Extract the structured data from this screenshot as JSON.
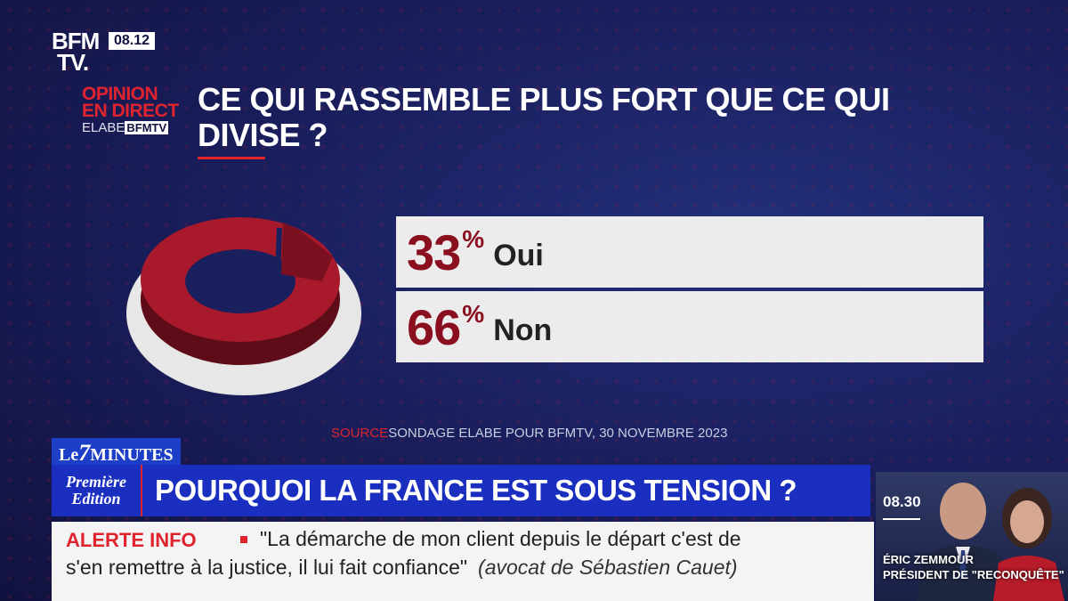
{
  "channel": {
    "logo_line1": "BFM",
    "logo_line2": "TV.",
    "time": "08.12"
  },
  "opinion_logo": {
    "line1": "OPINION",
    "line2": "EN DIRECT",
    "line3a": "ELABE",
    "line3b": "BFMTV"
  },
  "question": "CE QUI RASSEMBLE PLUS FORT QUE CE QUI DIVISE ?",
  "results": [
    {
      "value": "33",
      "unit": "%",
      "label": "Oui"
    },
    {
      "value": "66",
      "unit": "%",
      "label": "Non"
    }
  ],
  "source": {
    "label": "SOURCE",
    "text": "SONDAGE ELABE POUR BFMTV, 30 NOVEMBRE 2023"
  },
  "program": {
    "badge_prefix": "Le",
    "badge_number": "7",
    "badge_suffix": "MINUTES",
    "edition_line1": "Première",
    "edition_line2": "Edition",
    "title": "POURQUOI LA FRANCE EST SOUS TENSION ?"
  },
  "ticker": {
    "alert_label": "ALERTE INFO",
    "line1": "\"La démarche de mon client depuis le départ c'est de",
    "line2": "s'en remettre à la justice, il lui fait confiance\"",
    "attribution": "(avocat de Sébastien Cauet)"
  },
  "guest_panel": {
    "time": "08.30",
    "name": "ÉRIC ZEMMOUR",
    "role": "PRÉSIDENT DE \"RECONQUÊTE\""
  },
  "colors": {
    "accent_red": "#e0242f",
    "dark_red": "#8a1020",
    "navy": "#1a1f5e",
    "program_blue": "#1a2fc0"
  }
}
